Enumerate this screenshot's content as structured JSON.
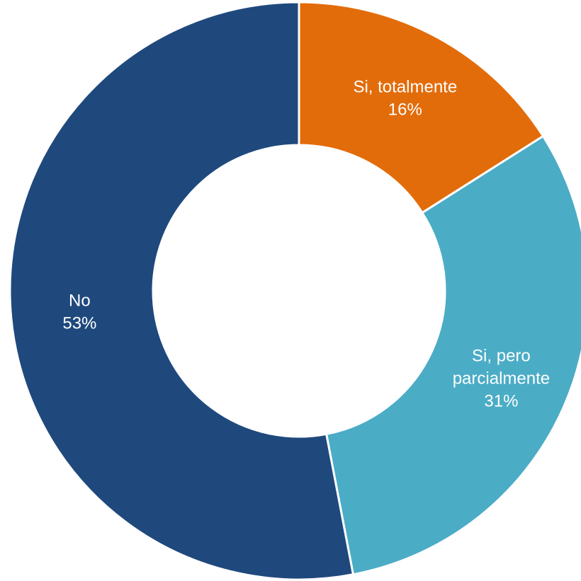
{
  "chart_data": {
    "type": "pie",
    "style": "donut",
    "title": "",
    "categories": [
      "Si, totalmente",
      "Si, pero parcialmente",
      "No"
    ],
    "values": [
      16,
      31,
      53
    ],
    "value_labels": [
      "16%",
      "31%",
      "53%"
    ],
    "slices": [
      {
        "name": "Si, totalmente",
        "label_lines": [
          "Si, totalmente"
        ],
        "value": 16,
        "value_label": "16%",
        "color": "#E36C0A"
      },
      {
        "name": "Si, pero parcialmente",
        "label_lines": [
          "Si, pero",
          "parcialmente"
        ],
        "value": 31,
        "value_label": "31%",
        "color": "#4BACC6"
      },
      {
        "name": "No",
        "label_lines": [
          "No"
        ],
        "value": 53,
        "value_label": "53%",
        "color": "#1F497D"
      }
    ],
    "legend": "none",
    "start_angle": "12 o'clock",
    "direction": "clockwise"
  }
}
